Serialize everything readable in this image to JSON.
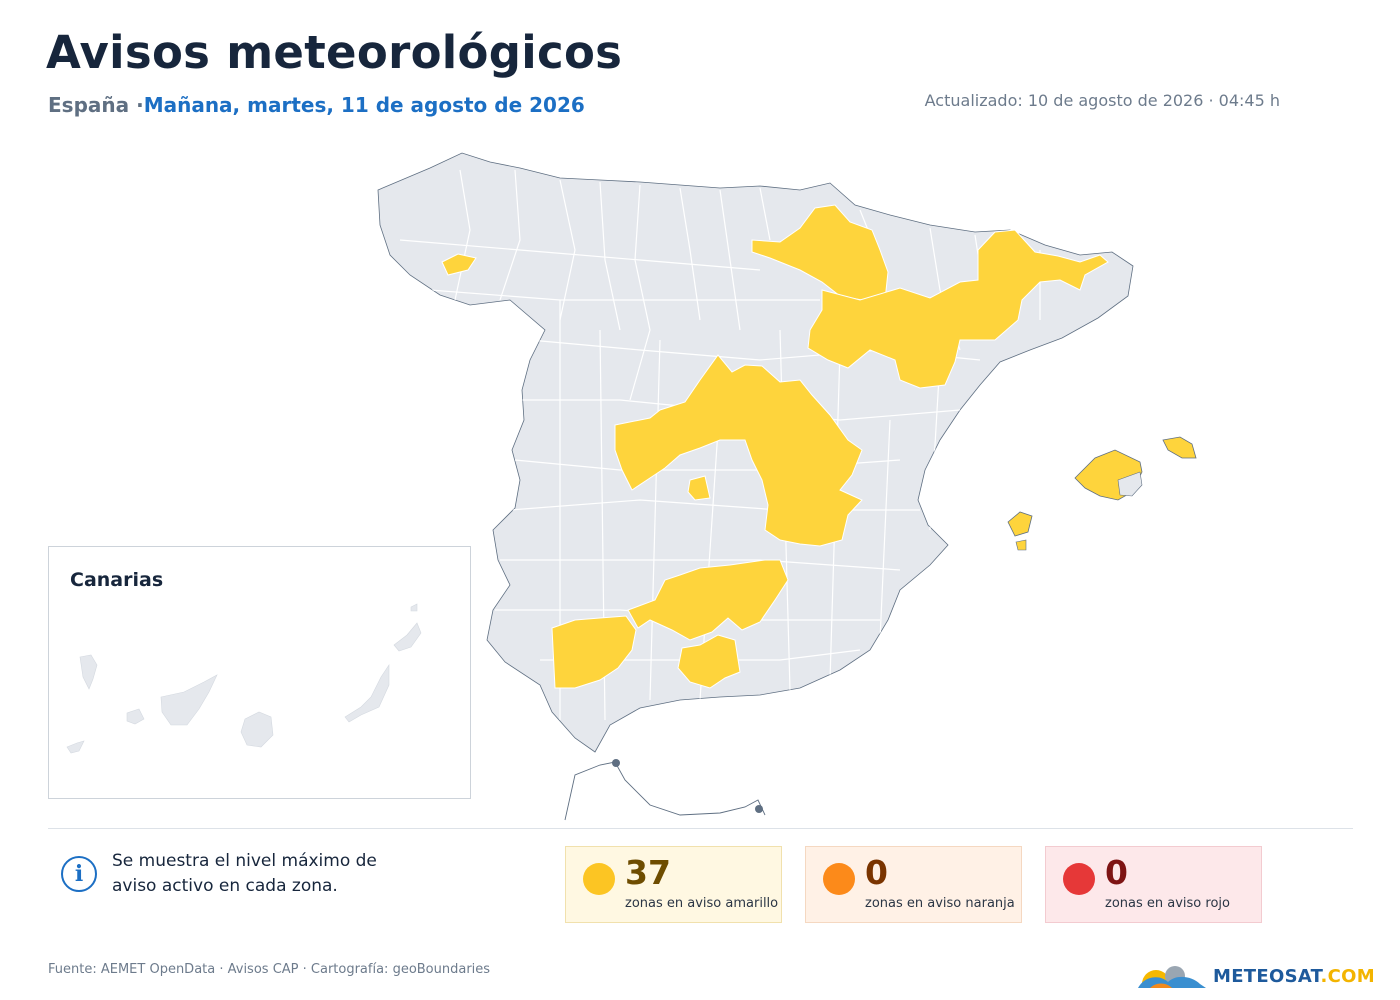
{
  "header": {
    "title": "Avisos meteorológicos",
    "region": "España ·",
    "day_label": "Mañana, martes, 11 de agosto de 2026",
    "updated": "Actualizado: 10 de agosto de 2026 · 04:45 h"
  },
  "inset": {
    "title": "Canarias"
  },
  "map": {
    "base_color": "#e5e8ed",
    "border_color": "#ffffff",
    "coast_color": "#5f6f82",
    "warning_colors": {
      "yellow": "#fed43c",
      "orange": "#fc8a1a",
      "red": "#e63838"
    },
    "highlighted_level": "yellow"
  },
  "legend": {
    "note": "Se muestra el nivel máximo de aviso activo en cada zona.",
    "yellow": {
      "count": "37",
      "label": "zonas en aviso amarillo",
      "color": "#fcc523"
    },
    "orange": {
      "count": "0",
      "label": "zonas en aviso naranja",
      "color": "#fc8a1a"
    },
    "red": {
      "count": "0",
      "label": "zonas en aviso rojo",
      "color": "#e63838"
    }
  },
  "footer": {
    "source": "Fuente: AEMET OpenData · Avisos CAP · Cartografía: geoBoundaries",
    "logo_main": "METEOSAT",
    "logo_suffix": ".COM"
  }
}
